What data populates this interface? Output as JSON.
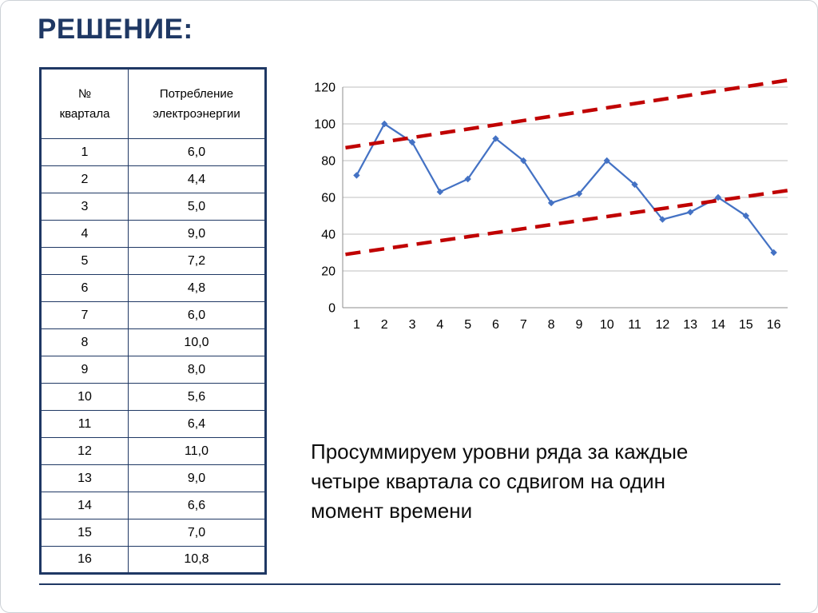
{
  "slide": {
    "title": "РЕШЕНИЕ:"
  },
  "table": {
    "headers": [
      "№\nквартала",
      "Потребление\nэлектроэнергии"
    ],
    "rows": [
      [
        "1",
        "6,0"
      ],
      [
        "2",
        "4,4"
      ],
      [
        "3",
        "5,0"
      ],
      [
        "4",
        "9,0"
      ],
      [
        "5",
        "7,2"
      ],
      [
        "6",
        "4,8"
      ],
      [
        "7",
        "6,0"
      ],
      [
        "8",
        "10,0"
      ],
      [
        "9",
        "8,0"
      ],
      [
        "10",
        "5,6"
      ],
      [
        "11",
        "6,4"
      ],
      [
        "12",
        "11,0"
      ],
      [
        "13",
        "9,0"
      ],
      [
        "14",
        "6,6"
      ],
      [
        "15",
        "7,0"
      ],
      [
        "16",
        "10,8"
      ]
    ]
  },
  "chart_data": {
    "type": "line",
    "x": [
      1,
      2,
      3,
      4,
      5,
      6,
      7,
      8,
      9,
      10,
      11,
      12,
      13,
      14,
      15,
      16
    ],
    "series": [
      {
        "color": "#4472C4",
        "marker": "diamond",
        "values": [
          72,
          100,
          90,
          63,
          70,
          92,
          80,
          57,
          62,
          80,
          67,
          48,
          52,
          60,
          50,
          30
        ]
      }
    ],
    "trend_lines": [
      {
        "color": "#C00000",
        "x": [
          0.6,
          16.6
        ],
        "y": [
          87,
          124
        ]
      },
      {
        "color": "#C00000",
        "x": [
          0.6,
          16.6
        ],
        "y": [
          29,
          64
        ]
      }
    ],
    "ylim": [
      0,
      120
    ],
    "ytick_step": 20,
    "ytick_labels": [
      "0",
      "20",
      "40",
      "60",
      "80",
      "100",
      "120"
    ],
    "xtick_labels": [
      "1",
      "2",
      "3",
      "4",
      "5",
      "6",
      "7",
      "8",
      "9",
      "10",
      "11",
      "12",
      "13",
      "14",
      "15",
      "16"
    ],
    "grid": true,
    "legend": "none",
    "title": ""
  },
  "caption": {
    "text": "Просуммируем уровни ряда за каждые\nчетыре квартала со сдвигом на один\nмомент времени"
  },
  "colors": {
    "accent": "#1F3864",
    "series": "#4472C4",
    "trend": "#C00000",
    "grid": "#BFBFBF",
    "axis": "#8C8C8C"
  }
}
